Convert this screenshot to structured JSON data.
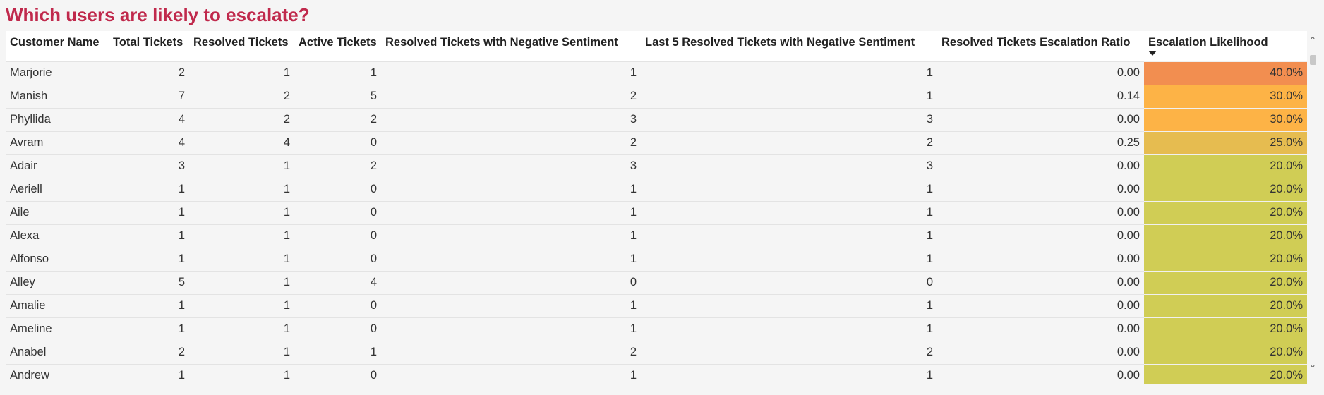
{
  "title": "Which users are likely to escalate?",
  "columns": [
    "Customer Name",
    "Total Tickets",
    "Resolved Tickets",
    "Active Tickets",
    "Resolved Tickets with Negative Sentiment",
    "Last 5 Resolved Tickets with Negative Sentiment",
    "Resolved Tickets Escalation Ratio",
    "Escalation Likelihood"
  ],
  "sorted_column": "Escalation Likelihood",
  "sort_direction": "descending",
  "colors": {
    "title": "#c0294c",
    "likelihood_40": "#f28e50",
    "likelihood_30": "#fdb346",
    "likelihood_25": "#e6bc50",
    "likelihood_20": "#d0cd55"
  },
  "rows": [
    {
      "name": "Marjorie",
      "total": "2",
      "resolved": "1",
      "active": "1",
      "neg": "1",
      "last5": "1",
      "ratio": "0.00",
      "likelihood": "40.0%",
      "likelihood_value": 0.4
    },
    {
      "name": "Manish",
      "total": "7",
      "resolved": "2",
      "active": "5",
      "neg": "2",
      "last5": "1",
      "ratio": "0.14",
      "likelihood": "30.0%",
      "likelihood_value": 0.3
    },
    {
      "name": "Phyllida",
      "total": "4",
      "resolved": "2",
      "active": "2",
      "neg": "3",
      "last5": "3",
      "ratio": "0.00",
      "likelihood": "30.0%",
      "likelihood_value": 0.3
    },
    {
      "name": "Avram",
      "total": "4",
      "resolved": "4",
      "active": "0",
      "neg": "2",
      "last5": "2",
      "ratio": "0.25",
      "likelihood": "25.0%",
      "likelihood_value": 0.25
    },
    {
      "name": "Adair",
      "total": "3",
      "resolved": "1",
      "active": "2",
      "neg": "3",
      "last5": "3",
      "ratio": "0.00",
      "likelihood": "20.0%",
      "likelihood_value": 0.2
    },
    {
      "name": "Aeriell",
      "total": "1",
      "resolved": "1",
      "active": "0",
      "neg": "1",
      "last5": "1",
      "ratio": "0.00",
      "likelihood": "20.0%",
      "likelihood_value": 0.2
    },
    {
      "name": "Aile",
      "total": "1",
      "resolved": "1",
      "active": "0",
      "neg": "1",
      "last5": "1",
      "ratio": "0.00",
      "likelihood": "20.0%",
      "likelihood_value": 0.2
    },
    {
      "name": "Alexa",
      "total": "1",
      "resolved": "1",
      "active": "0",
      "neg": "1",
      "last5": "1",
      "ratio": "0.00",
      "likelihood": "20.0%",
      "likelihood_value": 0.2
    },
    {
      "name": "Alfonso",
      "total": "1",
      "resolved": "1",
      "active": "0",
      "neg": "1",
      "last5": "1",
      "ratio": "0.00",
      "likelihood": "20.0%",
      "likelihood_value": 0.2
    },
    {
      "name": "Alley",
      "total": "5",
      "resolved": "1",
      "active": "4",
      "neg": "0",
      "last5": "0",
      "ratio": "0.00",
      "likelihood": "20.0%",
      "likelihood_value": 0.2
    },
    {
      "name": "Amalie",
      "total": "1",
      "resolved": "1",
      "active": "0",
      "neg": "1",
      "last5": "1",
      "ratio": "0.00",
      "likelihood": "20.0%",
      "likelihood_value": 0.2
    },
    {
      "name": "Ameline",
      "total": "1",
      "resolved": "1",
      "active": "0",
      "neg": "1",
      "last5": "1",
      "ratio": "0.00",
      "likelihood": "20.0%",
      "likelihood_value": 0.2
    },
    {
      "name": "Anabel",
      "total": "2",
      "resolved": "1",
      "active": "1",
      "neg": "2",
      "last5": "2",
      "ratio": "0.00",
      "likelihood": "20.0%",
      "likelihood_value": 0.2
    },
    {
      "name": "Andrew",
      "total": "1",
      "resolved": "1",
      "active": "0",
      "neg": "1",
      "last5": "1",
      "ratio": "0.00",
      "likelihood": "20.0%",
      "likelihood_value": 0.2
    }
  ],
  "icons": {
    "sort": "sort-descending-icon",
    "scroll_up": "chevron-up-icon",
    "scroll_down": "chevron-down-icon"
  }
}
